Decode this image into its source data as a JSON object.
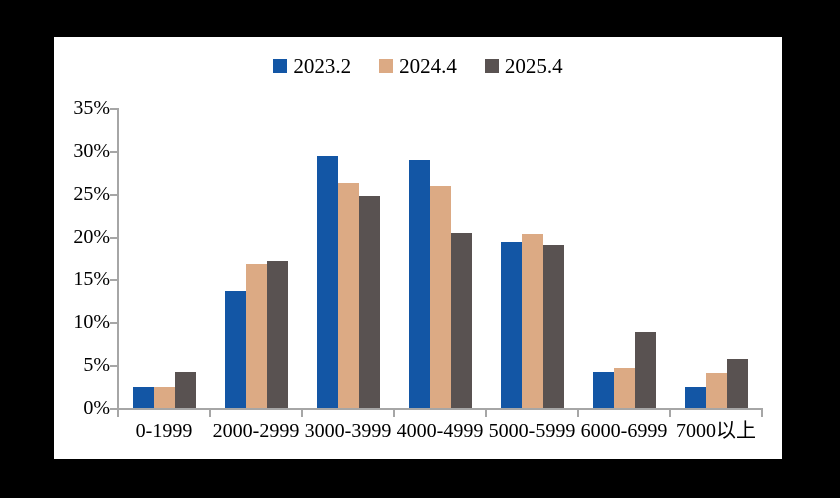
{
  "frame": {
    "background_color": "#000000",
    "card_color": "#ffffff",
    "axis_color": "#a6a6a6",
    "text_color": "#000000"
  },
  "legend": {
    "items": [
      {
        "label": "2023.2",
        "color": "#1356a5"
      },
      {
        "label": "2024.4",
        "color": "#dcaa84"
      },
      {
        "label": "2025.4",
        "color": "#595251"
      }
    ]
  },
  "chart_data": {
    "type": "bar",
    "title": "",
    "xlabel": "",
    "ylabel": "",
    "categories": [
      "0-1999",
      "2000-2999",
      "3000-3999",
      "4000-4999",
      "5000-5999",
      "6000-6999",
      "7000以上"
    ],
    "series": [
      {
        "name": "2023.2",
        "color": "#1356a5",
        "values": [
          2.5,
          13.7,
          29.4,
          28.9,
          19.4,
          4.2,
          2.4
        ]
      },
      {
        "name": "2024.4",
        "color": "#dcaa84",
        "values": [
          2.4,
          16.8,
          26.3,
          25.9,
          20.3,
          4.7,
          4.1
        ]
      },
      {
        "name": "2025.4",
        "color": "#595251",
        "values": [
          4.2,
          17.2,
          24.7,
          20.4,
          19.0,
          8.9,
          5.7
        ]
      }
    ],
    "ylim": [
      0,
      35
    ],
    "ytick_step": 5,
    "ytick_labels": [
      "0%",
      "5%",
      "10%",
      "15%",
      "20%",
      "25%",
      "30%",
      "35%"
    ],
    "grid": false,
    "legend_position": "top-center"
  }
}
